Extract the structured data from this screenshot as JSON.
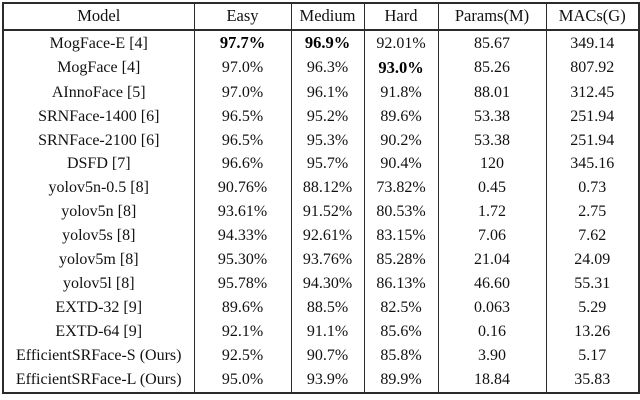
{
  "colors": {
    "background": "#ffffff",
    "text": "#111111",
    "border": "#2b2b2b",
    "bold_text": "#000000"
  },
  "table": {
    "column_keys": [
      "model",
      "easy",
      "medium",
      "hard",
      "params_m",
      "macs_g"
    ],
    "columns": [
      "Model",
      "Easy",
      "Medium",
      "Hard",
      "Params(M)",
      "MACs(G)"
    ],
    "rows": [
      {
        "cells": [
          "MogFace-E [4]",
          "97.7%",
          "96.9%",
          "92.01%",
          "85.67",
          "349.14"
        ],
        "bold": [
          1,
          2
        ]
      },
      {
        "cells": [
          "MogFace [4]",
          "97.0%",
          "96.3%",
          "93.0%",
          "85.26",
          "807.92"
        ],
        "bold": [
          3
        ]
      },
      {
        "cells": [
          "AInnoFace [5]",
          "97.0%",
          "96.1%",
          "91.8%",
          "88.01",
          "312.45"
        ],
        "bold": []
      },
      {
        "cells": [
          "SRNFace-1400 [6]",
          "96.5%",
          "95.2%",
          "89.6%",
          "53.38",
          "251.94"
        ],
        "bold": []
      },
      {
        "cells": [
          "SRNFace-2100 [6]",
          "96.5%",
          "95.3%",
          "90.2%",
          "53.38",
          "251.94"
        ],
        "bold": []
      },
      {
        "cells": [
          "DSFD [7]",
          "96.6%",
          "95.7%",
          "90.4%",
          "120",
          "345.16"
        ],
        "bold": []
      },
      {
        "cells": [
          "yolov5n-0.5 [8]",
          "90.76%",
          "88.12%",
          "73.82%",
          "0.45",
          "0.73"
        ],
        "bold": []
      },
      {
        "cells": [
          "yolov5n [8]",
          "93.61%",
          "91.52%",
          "80.53%",
          "1.72",
          "2.75"
        ],
        "bold": []
      },
      {
        "cells": [
          "yolov5s [8]",
          "94.33%",
          "92.61%",
          "83.15%",
          "7.06",
          "7.62"
        ],
        "bold": []
      },
      {
        "cells": [
          "yolov5m [8]",
          "95.30%",
          "93.76%",
          "85.28%",
          "21.04",
          "24.09"
        ],
        "bold": []
      },
      {
        "cells": [
          "yolov5l [8]",
          "95.78%",
          "94.30%",
          "86.13%",
          "46.60",
          "55.31"
        ],
        "bold": []
      },
      {
        "cells": [
          "EXTD-32 [9]",
          "89.6%",
          "88.5%",
          "82.5%",
          "0.063",
          "5.29"
        ],
        "bold": []
      },
      {
        "cells": [
          "EXTD-64 [9]",
          "92.1%",
          "91.1%",
          "85.6%",
          "0.16",
          "13.26"
        ],
        "bold": []
      },
      {
        "cells": [
          "EfficientSRFace-S (Ours)",
          "92.5%",
          "90.7%",
          "85.8%",
          "3.90",
          "5.17"
        ],
        "bold": []
      },
      {
        "cells": [
          "EfficientSRFace-L (Ours)",
          "95.0%",
          "93.9%",
          "89.9%",
          "18.84",
          "35.83"
        ],
        "bold": []
      }
    ]
  }
}
